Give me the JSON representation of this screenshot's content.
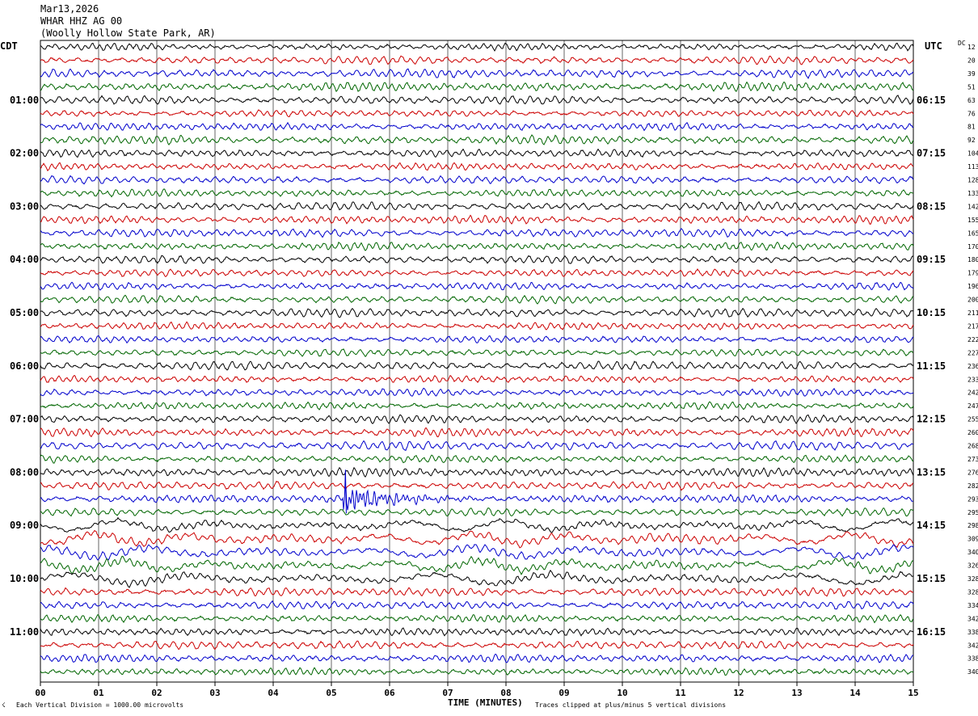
{
  "header": {
    "date": "Mar13,2026",
    "station": "WHAR HHZ AG 00",
    "location": "(Woolly Hollow State Park, AR)"
  },
  "left_zone_label": "CDT",
  "right_zone_label": "UTC",
  "dc_label": "DC",
  "footer": {
    "scale_note": "Each Vertical Division = 1000.00 microvolts",
    "x_axis_title": "TIME (MINUTES)",
    "clip_note": "Traces clipped at plus/minus 5 vertical divisions"
  },
  "colors": {
    "trace_cycle": [
      "#000000",
      "#cc0000",
      "#0000cc",
      "#006600"
    ],
    "grid": "#000000"
  },
  "chart_data": {
    "type": "line",
    "title": "",
    "xlabel": "TIME (MINUTES)",
    "ylabel": "",
    "x_ticks": [
      "00",
      "01",
      "02",
      "03",
      "04",
      "05",
      "06",
      "07",
      "08",
      "09",
      "10",
      "11",
      "12",
      "13",
      "14",
      "15"
    ],
    "xlim": [
      0,
      15
    ],
    "row_count": 48,
    "left_hour_labels": [
      "01:00",
      "02:00",
      "03:00",
      "04:00",
      "05:00",
      "06:00",
      "07:00",
      "08:00",
      "09:00",
      "10:00",
      "11:00"
    ],
    "right_hour_labels": [
      "06:15",
      "07:15",
      "08:15",
      "09:15",
      "10:15",
      "11:15",
      "12:15",
      "13:15",
      "14:15",
      "15:15",
      "16:15"
    ],
    "dc_offsets": [
      12,
      20,
      39,
      51,
      63,
      76,
      81,
      92,
      104,
      113,
      128,
      133,
      142,
      155,
      165,
      170,
      180,
      179,
      196,
      200,
      211,
      217,
      222,
      227,
      236,
      233,
      242,
      247,
      255,
      260,
      268,
      273,
      276,
      282,
      293,
      295,
      298,
      309,
      340,
      326,
      328,
      328,
      334,
      342,
      338,
      342,
      338,
      340
    ],
    "event": {
      "row": 34,
      "start_minute": 5.2,
      "end_minute": 7.6
    }
  }
}
